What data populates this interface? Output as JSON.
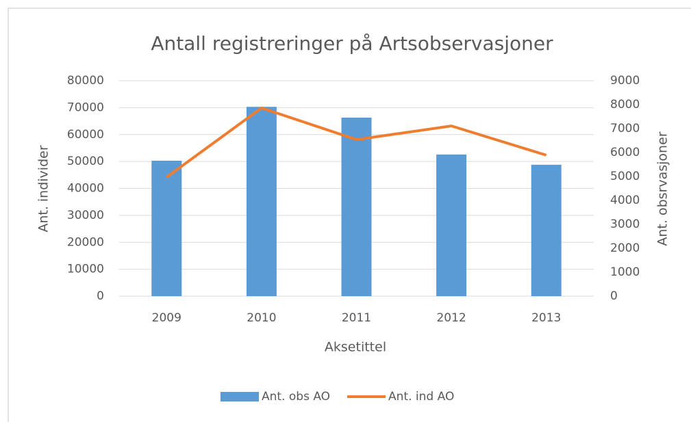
{
  "chart_data": {
    "type": "bar",
    "title": "Antall registreringer på Artsobservasjoner",
    "x_label": "Aksetittel",
    "y_label": "Ant. individer",
    "y2_label": "Ant. obsrvasjoner",
    "categories": [
      "2009",
      "2010",
      "2011",
      "2012",
      "2013"
    ],
    "series": [
      {
        "name": "Ant. obs AO",
        "type": "bar",
        "color": "#5b9bd5",
        "axis": "y",
        "values": [
          50300,
          70300,
          66300,
          52600,
          48800
        ]
      },
      {
        "name": "Ant. ind AO",
        "type": "line",
        "color": "#ed7d31",
        "axis": "y2",
        "values": [
          4970,
          7860,
          6540,
          7110,
          5890
        ]
      }
    ],
    "ylim": [
      0,
      80000
    ],
    "yticks": [
      0,
      10000,
      20000,
      30000,
      40000,
      50000,
      60000,
      70000,
      80000
    ],
    "y2lim": [
      0,
      9000
    ],
    "y2ticks": [
      0,
      1000,
      2000,
      3000,
      4000,
      5000,
      6000,
      7000,
      8000,
      9000
    ],
    "grid": true,
    "legend": "bottom"
  }
}
